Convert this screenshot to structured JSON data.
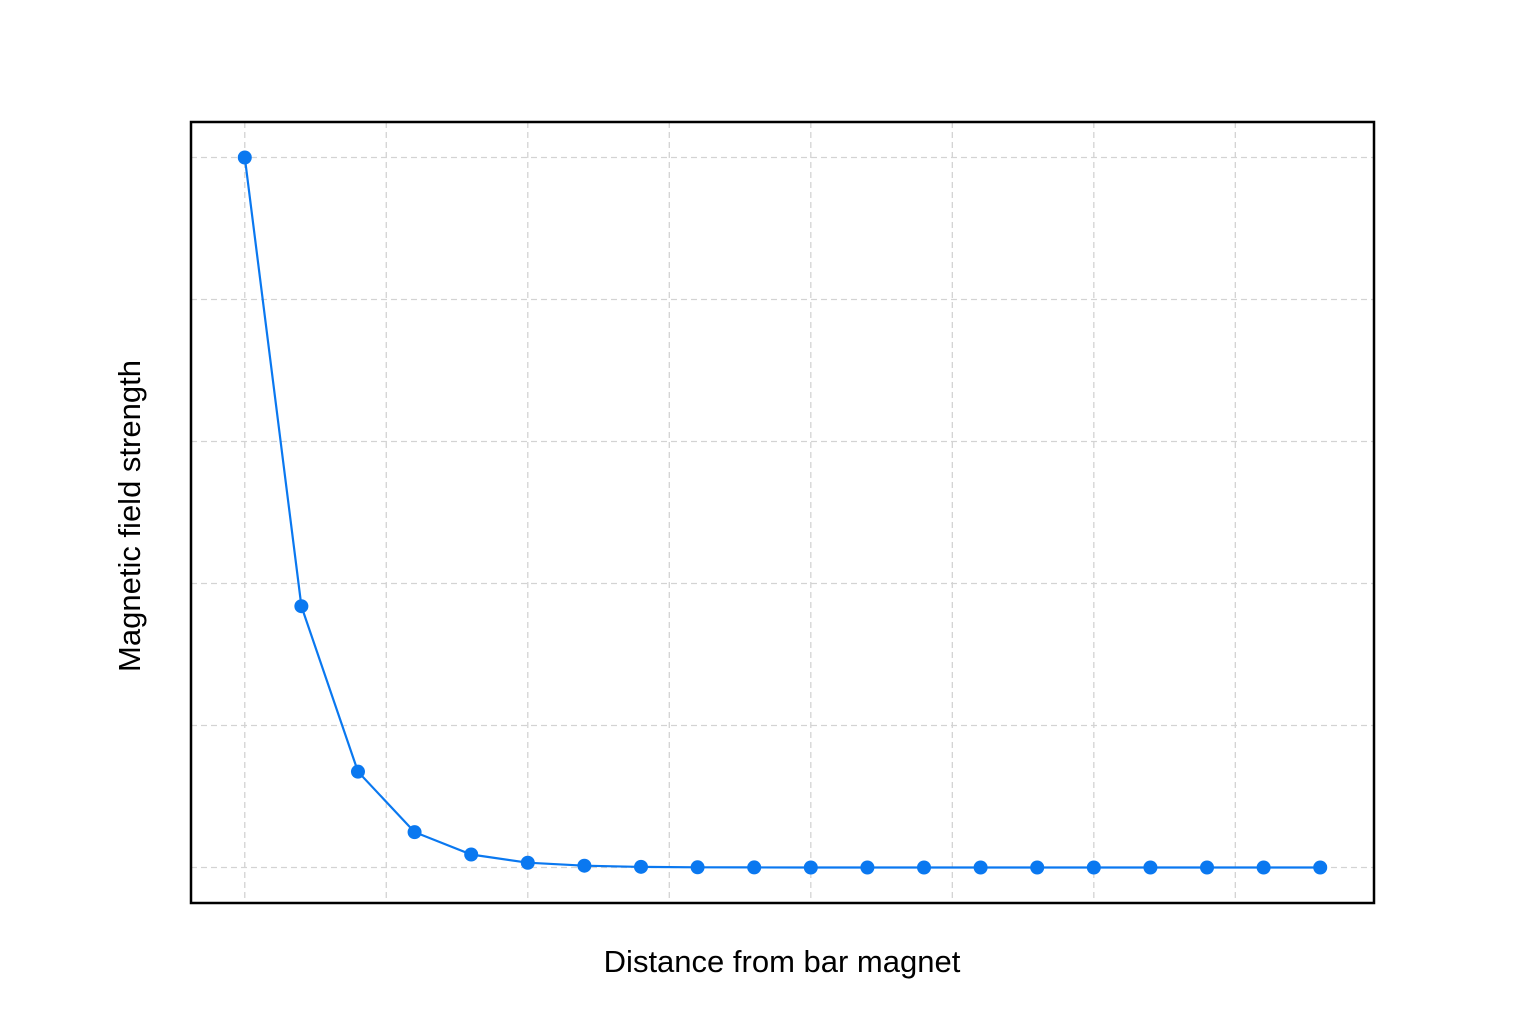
{
  "chart_data": {
    "type": "line",
    "title": "",
    "xlabel": "Distance from bar magnet",
    "ylabel": "Magnetic field strength",
    "x_ticks_labeled": false,
    "y_ticks_labeled": false,
    "grid": true,
    "grid_style": "dashed",
    "legend": "none",
    "marker": "circle",
    "series": [
      {
        "x": [
          0,
          1,
          2,
          3,
          4,
          5,
          6,
          7,
          8,
          9,
          10,
          11,
          12,
          13,
          14,
          15,
          16,
          17,
          18,
          19
        ],
        "y": [
          1.0,
          0.368,
          0.135,
          0.0498,
          0.0183,
          0.0067,
          0.0025,
          0.0009,
          0.0003,
          0.0001,
          0.0,
          0.0,
          0.0,
          0.0,
          0.0,
          0.0,
          0.0,
          0.0,
          0.0,
          0.0
        ]
      }
    ],
    "xlim": [
      -0.95,
      19.95
    ],
    "ylim": [
      -0.05,
      1.05
    ],
    "colors": {
      "series": "#0a78f0",
      "grid": "#d3d3d3",
      "frame": "#000000"
    }
  }
}
